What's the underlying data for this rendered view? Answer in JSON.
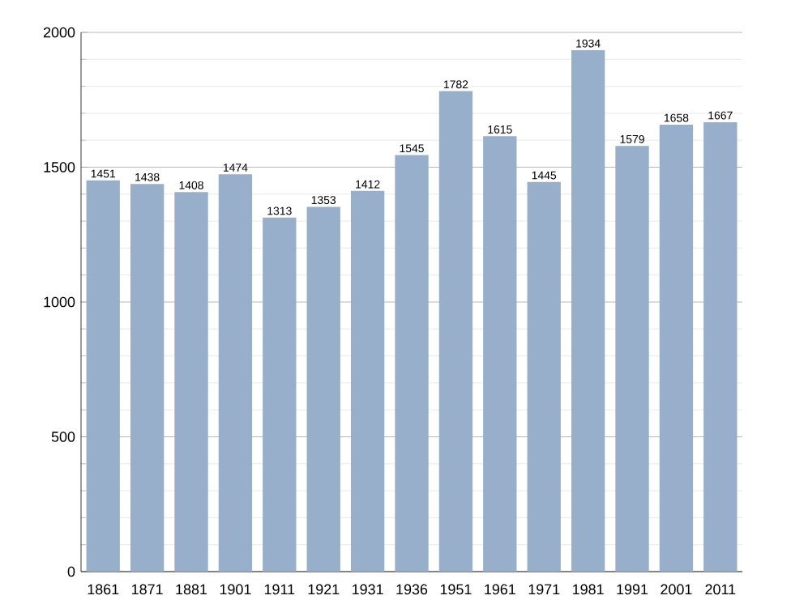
{
  "chart_data": {
    "type": "bar",
    "categories": [
      "1861",
      "1871",
      "1881",
      "1901",
      "1911",
      "1921",
      "1931",
      "1936",
      "1951",
      "1961",
      "1971",
      "1981",
      "1991",
      "2001",
      "2011"
    ],
    "values": [
      1451,
      1438,
      1408,
      1474,
      1313,
      1353,
      1412,
      1545,
      1782,
      1615,
      1445,
      1934,
      1579,
      1658,
      1667
    ],
    "color": "#97afcb",
    "ylim": [
      0,
      2000
    ],
    "yticks": [
      0,
      500,
      1000,
      1500,
      2000
    ],
    "grid": "y",
    "data_labels": true
  }
}
